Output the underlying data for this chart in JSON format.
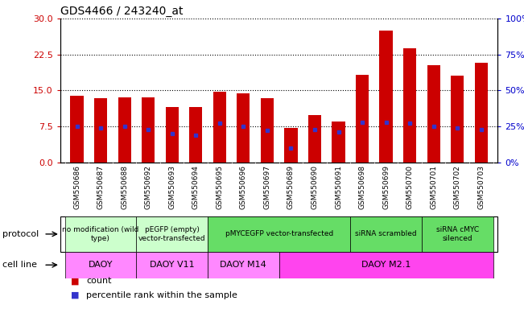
{
  "title": "GDS4466 / 243240_at",
  "samples": [
    "GSM550686",
    "GSM550687",
    "GSM550688",
    "GSM550692",
    "GSM550693",
    "GSM550694",
    "GSM550695",
    "GSM550696",
    "GSM550697",
    "GSM550689",
    "GSM550690",
    "GSM550691",
    "GSM550698",
    "GSM550699",
    "GSM550700",
    "GSM550701",
    "GSM550702",
    "GSM550703"
  ],
  "counts": [
    13.8,
    13.3,
    13.5,
    13.6,
    11.5,
    11.5,
    14.8,
    14.3,
    13.3,
    7.2,
    9.8,
    8.5,
    18.2,
    27.5,
    23.8,
    20.2,
    18.0,
    20.8
  ],
  "percentile_ranks": [
    25.0,
    24.0,
    25.0,
    23.0,
    20.0,
    19.0,
    27.0,
    25.0,
    22.0,
    10.0,
    23.0,
    21.0,
    28.0,
    28.0,
    27.0,
    25.0,
    24.0,
    23.0
  ],
  "ylim_left": [
    0,
    30
  ],
  "ylim_right": [
    0,
    100
  ],
  "yticks_left": [
    0,
    7.5,
    15,
    22.5,
    30
  ],
  "yticks_right": [
    0,
    25,
    50,
    75,
    100
  ],
  "bar_color": "#cc0000",
  "dot_color": "#3333cc",
  "protocol_groups": [
    {
      "label": "no modification (wild\ntype)",
      "start": 0,
      "end": 3,
      "color": "#ccffcc"
    },
    {
      "label": "pEGFP (empty)\nvector-transfected",
      "start": 3,
      "end": 6,
      "color": "#ccffcc"
    },
    {
      "label": "pMYCEGFP vector-transfected",
      "start": 6,
      "end": 12,
      "color": "#66dd66"
    },
    {
      "label": "siRNA scrambled",
      "start": 12,
      "end": 15,
      "color": "#66dd66"
    },
    {
      "label": "siRNA cMYC\nsilenced",
      "start": 15,
      "end": 18,
      "color": "#66dd66"
    }
  ],
  "cell_line_groups": [
    {
      "label": "DAOY",
      "start": 0,
      "end": 3,
      "color": "#ff88ff"
    },
    {
      "label": "DAOY V11",
      "start": 3,
      "end": 6,
      "color": "#ff88ff"
    },
    {
      "label": "DAOY M14",
      "start": 6,
      "end": 9,
      "color": "#ff88ff"
    },
    {
      "label": "DAOY M2.1",
      "start": 9,
      "end": 18,
      "color": "#ff44ee"
    }
  ],
  "protocol_label": "protocol",
  "cell_line_label": "cell line",
  "legend_count_label": "count",
  "legend_percentile_label": "percentile rank within the sample",
  "background_color": "#ffffff",
  "axis_left_color": "#cc0000",
  "axis_right_color": "#0000cc",
  "xtick_bg": "#d8d8d8",
  "title_fontsize": 10,
  "bar_width": 0.55
}
